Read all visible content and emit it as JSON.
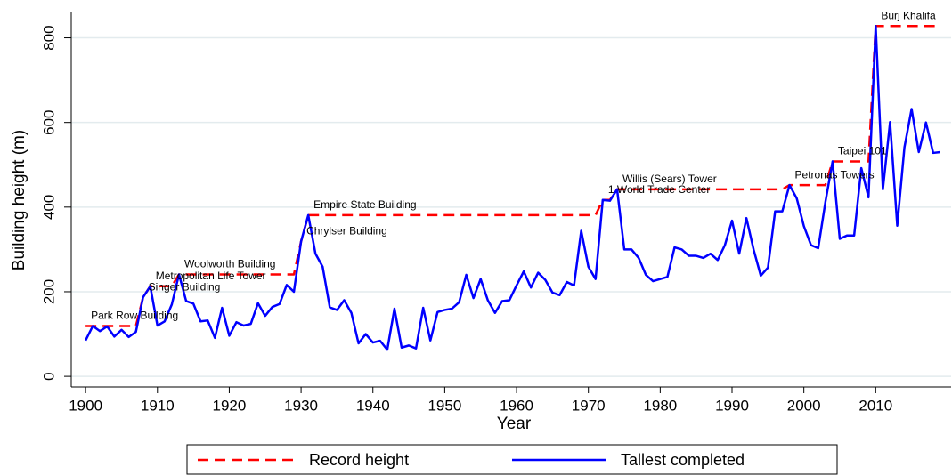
{
  "chart_data": {
    "type": "line",
    "xlabel": "Year",
    "ylabel": "Building height (m)",
    "xlim": [
      1898,
      2020.5
    ],
    "ylim": [
      -25,
      860
    ],
    "xticks": [
      1900,
      1910,
      1920,
      1930,
      1940,
      1950,
      1960,
      1970,
      1980,
      1990,
      2000,
      2010
    ],
    "yticks": [
      0,
      200,
      400,
      600,
      800
    ],
    "grid": true,
    "legend": "bottom",
    "series": [
      {
        "name": "Record height",
        "color": "#ff0000",
        "dashed": true,
        "x": [
          1900,
          1907,
          1908,
          1909,
          1912,
          1913,
          1929,
          1930,
          1931,
          1971,
          1972,
          1973,
          1974,
          1997,
          1998,
          2003,
          2004,
          2009,
          2010,
          2019
        ],
        "values": [
          119,
          119,
          187,
          213,
          213,
          241,
          241,
          319,
          381,
          381,
          417,
          417,
          442,
          442,
          452,
          452,
          508,
          508,
          828,
          828
        ]
      },
      {
        "name": "Tallest completed",
        "color": "#0000ff",
        "dashed": false,
        "x": [
          1900,
          1901,
          1902,
          1903,
          1904,
          1905,
          1906,
          1907,
          1908,
          1909,
          1910,
          1911,
          1912,
          1913,
          1914,
          1915,
          1916,
          1917,
          1918,
          1919,
          1920,
          1921,
          1922,
          1923,
          1924,
          1925,
          1926,
          1927,
          1928,
          1929,
          1930,
          1931,
          1932,
          1933,
          1934,
          1935,
          1936,
          1937,
          1938,
          1939,
          1940,
          1941,
          1942,
          1943,
          1944,
          1945,
          1946,
          1947,
          1948,
          1949,
          1950,
          1951,
          1952,
          1953,
          1954,
          1955,
          1956,
          1957,
          1958,
          1959,
          1960,
          1961,
          1962,
          1963,
          1964,
          1965,
          1966,
          1967,
          1968,
          1969,
          1970,
          1971,
          1972,
          1973,
          1974,
          1975,
          1976,
          1977,
          1978,
          1979,
          1980,
          1981,
          1982,
          1983,
          1984,
          1985,
          1986,
          1987,
          1988,
          1989,
          1990,
          1991,
          1992,
          1993,
          1994,
          1995,
          1996,
          1997,
          1998,
          1999,
          2000,
          2001,
          2002,
          2003,
          2004,
          2005,
          2006,
          2007,
          2008,
          2009,
          2010,
          2011,
          2012,
          2013,
          2014,
          2015,
          2016,
          2017,
          2018,
          2019
        ],
        "values": [
          85,
          119,
          107,
          118,
          94,
          110,
          93,
          105,
          187,
          213,
          120,
          130,
          170,
          241,
          178,
          172,
          130,
          132,
          91,
          162,
          96,
          128,
          120,
          124,
          173,
          143,
          164,
          171,
          216,
          200,
          319,
          381,
          290,
          259,
          163,
          157,
          180,
          150,
          78,
          100,
          80,
          84,
          63,
          160,
          68,
          73,
          66,
          162,
          85,
          152,
          157,
          160,
          175,
          240,
          185,
          230,
          180,
          150,
          178,
          180,
          215,
          248,
          210,
          245,
          228,
          198,
          192,
          223,
          215,
          344,
          259,
          230,
          417,
          415,
          442,
          300,
          300,
          280,
          240,
          225,
          230,
          235,
          305,
          300,
          285,
          285,
          280,
          290,
          275,
          310,
          368,
          290,
          374,
          300,
          238,
          257,
          390,
          390,
          452,
          421,
          355,
          310,
          303,
          412,
          508,
          325,
          333,
          333,
          492,
          423,
          828,
          442,
          601,
          356,
          541,
          632,
          530,
          600,
          528,
          530
        ]
      }
    ],
    "annotations": [
      {
        "text": "Park Row Building",
        "x": 1900,
        "y": 119
      },
      {
        "text": "Singer Building",
        "x": 1908,
        "y": 187
      },
      {
        "text": "Metropolitan Life Tower",
        "x": 1909,
        "y": 213
      },
      {
        "text": "Woolworth Building",
        "x": 1913,
        "y": 241
      },
      {
        "text": "Chrylser Building",
        "x": 1930,
        "y": 319
      },
      {
        "text": "Empire State Building",
        "x": 1931,
        "y": 381
      },
      {
        "text": "1 World Trade Center",
        "x": 1972,
        "y": 417
      },
      {
        "text": "Willis (Sears) Tower",
        "x": 1974,
        "y": 442
      },
      {
        "text": "Petronas Towers",
        "x": 1998,
        "y": 452
      },
      {
        "text": "Taipei 101",
        "x": 2004,
        "y": 508
      },
      {
        "text": "Burj Khalifa",
        "x": 2010,
        "y": 828
      }
    ]
  }
}
